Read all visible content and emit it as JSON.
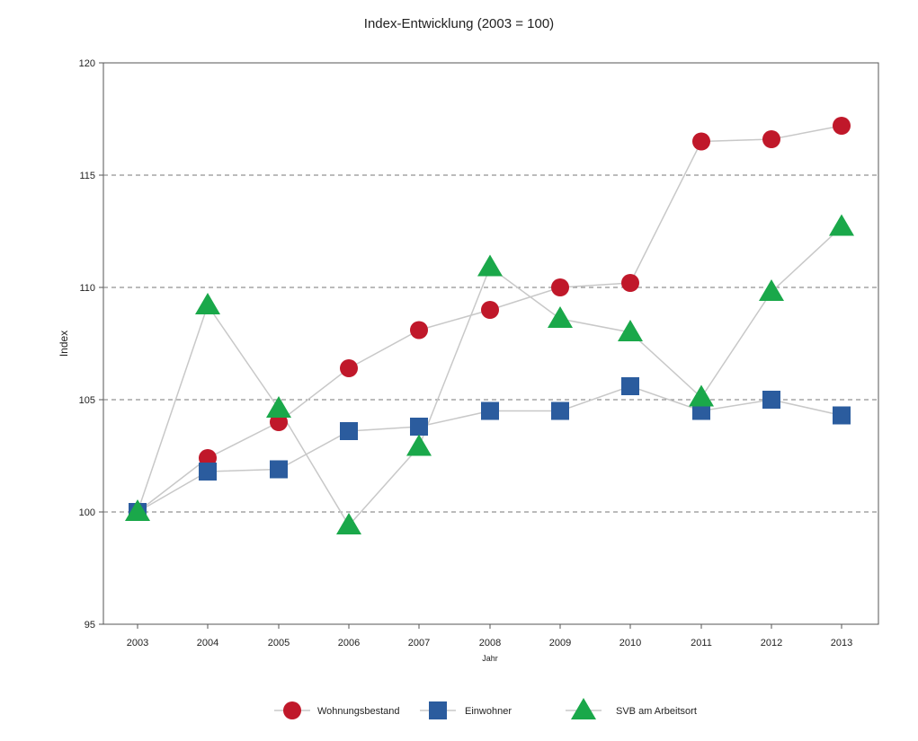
{
  "chart_data": {
    "type": "line",
    "title": "Index-Entwicklung (2003 = 100)",
    "xlabel": "Jahr",
    "ylabel": "Index",
    "ylim": [
      95,
      120
    ],
    "yticks": [
      95,
      100,
      105,
      110,
      115,
      120
    ],
    "grid": "horizontal dashed at 100, 105, 110, 115",
    "legend": "bottom",
    "categories": [
      "2003",
      "2004",
      "2005",
      "2006",
      "2007",
      "2008",
      "2009",
      "2010",
      "2011",
      "2012",
      "2013"
    ],
    "series": [
      {
        "name": "Wohnungsbestand",
        "marker": "circle",
        "color": "#c0182a",
        "values": [
          100.0,
          102.4,
          104.0,
          106.4,
          108.1,
          109.0,
          110.0,
          110.2,
          116.5,
          116.6,
          117.2
        ]
      },
      {
        "name": "Einwohner",
        "marker": "square",
        "color": "#2b5c9e",
        "values": [
          100.0,
          101.8,
          101.9,
          103.6,
          103.8,
          104.5,
          104.5,
          105.6,
          104.5,
          105.0,
          104.3
        ]
      },
      {
        "name": "SVB am Arbeitsort",
        "marker": "triangle",
        "color": "#1aa84a",
        "values": [
          100.0,
          109.2,
          104.6,
          99.4,
          102.9,
          110.9,
          108.6,
          108.0,
          105.1,
          109.8,
          112.7
        ]
      }
    ]
  },
  "colors": {
    "line": "#c8c8c8",
    "grid": "#777777",
    "axis": "#555555"
  }
}
